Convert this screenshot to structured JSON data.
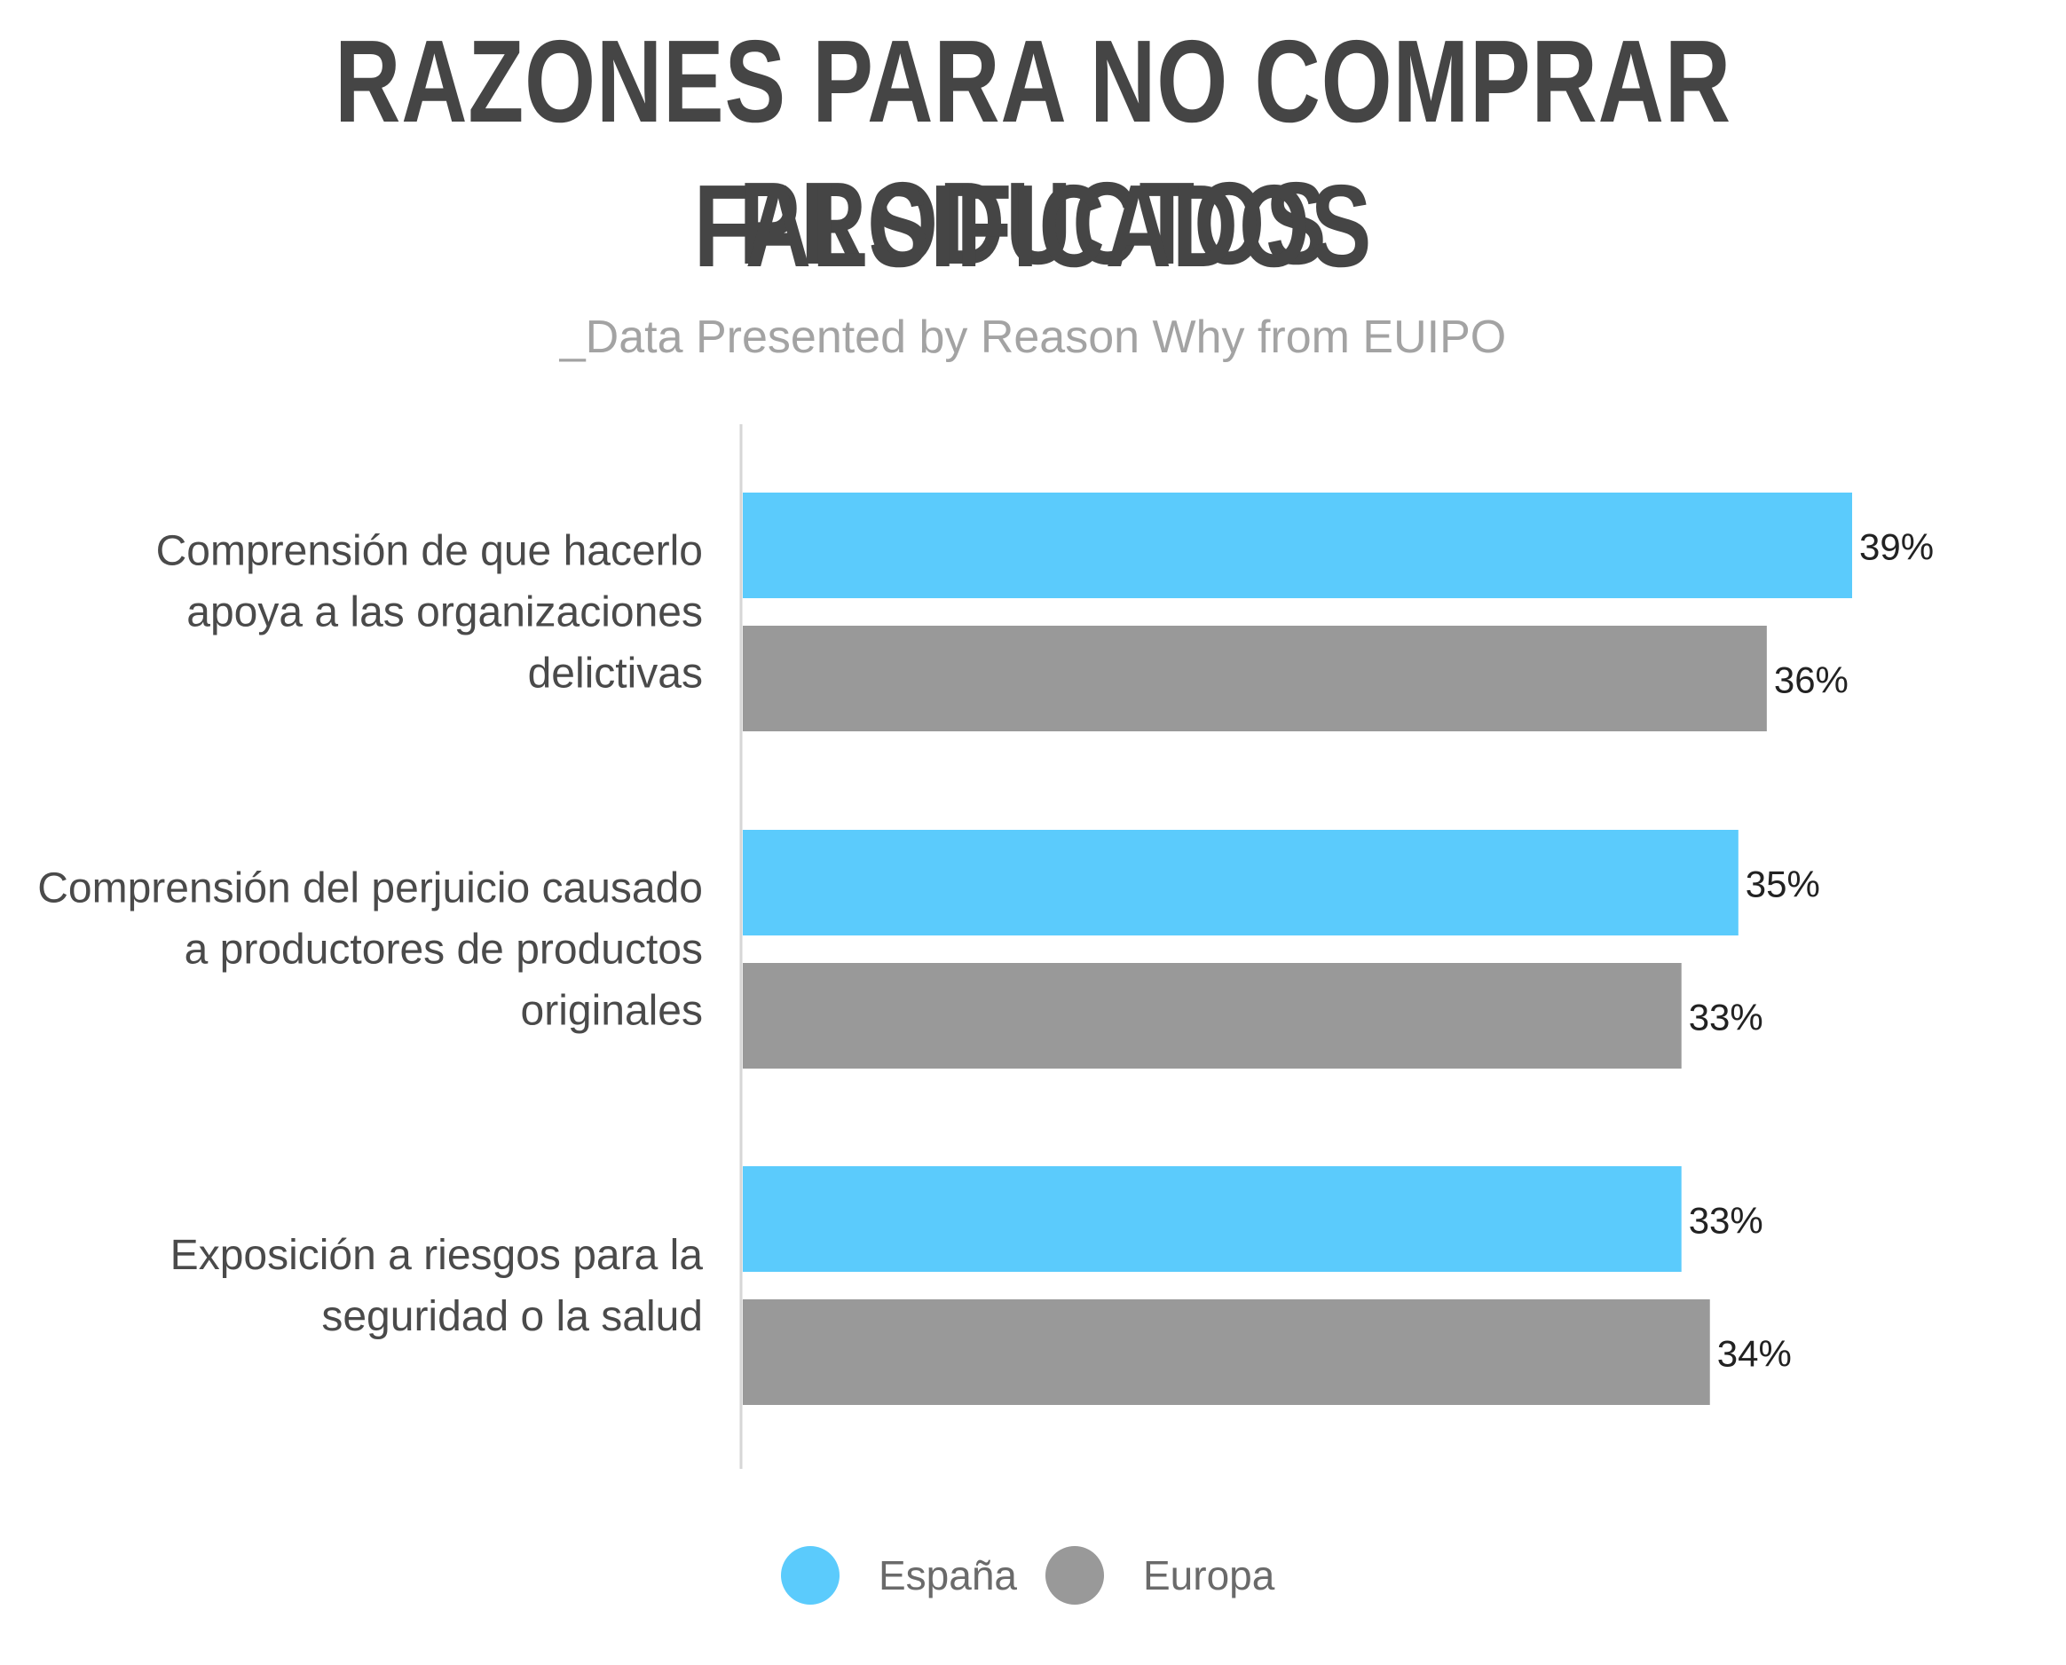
{
  "header": {
    "title_line1": "RAZONES PARA NO COMPRAR PRODUCTOS",
    "title_line2": "FALSIFICADOS",
    "subtitle": "_Data Presented by Reason Why from EUIPO"
  },
  "colors": {
    "espana": "#5bcbfc",
    "europa": "#999999",
    "label_text": "#4a4a4a",
    "value_text": "#222222",
    "axis": "#d6d6d6"
  },
  "chart_data": {
    "type": "bar",
    "orientation": "horizontal",
    "title": "RAZONES PARA NO COMPRAR PRODUCTOS FALSIFICADOS",
    "subtitle": "_Data Presented by Reason Why from EUIPO",
    "categories": [
      [
        "Comprensión de que hacerlo",
        "apoya a las organizaciones",
        "delictivas"
      ],
      [
        "Comprensión del perjuicio causado",
        "a productores de productos",
        "originales"
      ],
      [
        "Exposición a riesgos para la",
        "seguridad o la salud"
      ]
    ],
    "series": [
      {
        "name": "España",
        "values": [
          39,
          35,
          33
        ],
        "labels": [
          "39%",
          "35%",
          "33%"
        ]
      },
      {
        "name": "Europa",
        "values": [
          36,
          33,
          34
        ],
        "labels": [
          "36%",
          "33%",
          "34%"
        ]
      }
    ],
    "xlim": [
      0,
      39
    ],
    "grid": false,
    "legend": "bottom-center",
    "data_labels": true
  },
  "legend": {
    "items": [
      {
        "label": "España",
        "color": "#5bcbfc"
      },
      {
        "label": "Europa",
        "color": "#999999"
      }
    ]
  }
}
